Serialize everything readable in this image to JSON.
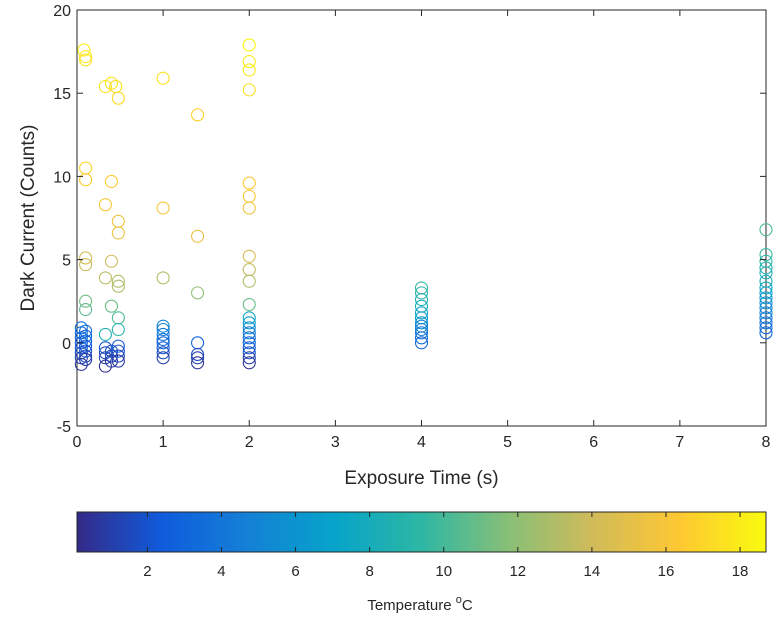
{
  "chart_data": {
    "type": "scatter",
    "xlabel": "Exposure Time (s)",
    "ylabel": "Dark Current (Counts)",
    "xlim": [
      0,
      8
    ],
    "ylim": [
      -5,
      20
    ],
    "xticks": [
      0,
      1,
      2,
      3,
      4,
      5,
      6,
      7,
      8
    ],
    "yticks": [
      -5,
      0,
      5,
      10,
      15,
      20
    ],
    "grid": false,
    "marker": "open-circle",
    "colormap": "parula",
    "colorbar": {
      "label_text": "Temperature ",
      "label_sup": "o",
      "label_unit": "C",
      "range": [
        0.1,
        18.7
      ],
      "ticks": [
        2,
        4,
        6,
        8,
        10,
        12,
        14,
        16,
        18
      ],
      "stops": [
        "#352a87",
        "#0f5cdd",
        "#1481d6",
        "#06a4ca",
        "#2eb7a4",
        "#87bf77",
        "#d1bb59",
        "#fec832",
        "#f9fb0e"
      ]
    },
    "points": [
      {
        "x": 0.08,
        "y": 17.6,
        "t": 18.0
      },
      {
        "x": 0.1,
        "y": 17.2,
        "t": 17.8
      },
      {
        "x": 0.1,
        "y": 17.0,
        "t": 17.6
      },
      {
        "x": 0.1,
        "y": 10.5,
        "t": 16.9
      },
      {
        "x": 0.1,
        "y": 9.8,
        "t": 16.5
      },
      {
        "x": 0.1,
        "y": 5.1,
        "t": 14.2
      },
      {
        "x": 0.1,
        "y": 4.7,
        "t": 13.8
      },
      {
        "x": 0.1,
        "y": 2.5,
        "t": 11.2
      },
      {
        "x": 0.1,
        "y": 2.0,
        "t": 10.6
      },
      {
        "x": 0.05,
        "y": 0.9,
        "t": 3.6
      },
      {
        "x": 0.05,
        "y": 0.6,
        "t": 3.3
      },
      {
        "x": 0.05,
        "y": 0.3,
        "t": 3.0
      },
      {
        "x": 0.05,
        "y": 0.0,
        "t": 2.6
      },
      {
        "x": 0.05,
        "y": -0.3,
        "t": 2.2
      },
      {
        "x": 0.05,
        "y": -0.6,
        "t": 1.8
      },
      {
        "x": 0.05,
        "y": -0.9,
        "t": 1.2
      },
      {
        "x": 0.05,
        "y": -1.3,
        "t": 0.6
      },
      {
        "x": 0.1,
        "y": 0.7,
        "t": 3.5
      },
      {
        "x": 0.1,
        "y": 0.4,
        "t": 3.1
      },
      {
        "x": 0.1,
        "y": 0.1,
        "t": 2.7
      },
      {
        "x": 0.1,
        "y": -0.2,
        "t": 2.3
      },
      {
        "x": 0.1,
        "y": -0.5,
        "t": 1.9
      },
      {
        "x": 0.1,
        "y": -0.8,
        "t": 1.4
      },
      {
        "x": 0.1,
        "y": -1.0,
        "t": 0.9
      },
      {
        "x": 0.33,
        "y": 15.4,
        "t": 17.5
      },
      {
        "x": 0.4,
        "y": 15.6,
        "t": 17.7
      },
      {
        "x": 0.45,
        "y": 15.4,
        "t": 17.4
      },
      {
        "x": 0.48,
        "y": 14.7,
        "t": 17.2
      },
      {
        "x": 0.4,
        "y": 9.7,
        "t": 16.4
      },
      {
        "x": 0.33,
        "y": 8.3,
        "t": 16.0
      },
      {
        "x": 0.48,
        "y": 7.3,
        "t": 15.6
      },
      {
        "x": 0.48,
        "y": 6.6,
        "t": 15.3
      },
      {
        "x": 0.4,
        "y": 4.9,
        "t": 14.0
      },
      {
        "x": 0.33,
        "y": 3.9,
        "t": 13.4
      },
      {
        "x": 0.48,
        "y": 3.7,
        "t": 13.0
      },
      {
        "x": 0.48,
        "y": 3.4,
        "t": 12.8
      },
      {
        "x": 0.4,
        "y": 2.2,
        "t": 11.0
      },
      {
        "x": 0.48,
        "y": 1.5,
        "t": 10.2
      },
      {
        "x": 0.48,
        "y": 0.8,
        "t": 9.2
      },
      {
        "x": 0.33,
        "y": 0.5,
        "t": 8.6
      },
      {
        "x": 0.33,
        "y": -0.3,
        "t": 2.0
      },
      {
        "x": 0.33,
        "y": -0.6,
        "t": 1.6
      },
      {
        "x": 0.33,
        "y": -0.9,
        "t": 1.1
      },
      {
        "x": 0.33,
        "y": -1.4,
        "t": 0.4
      },
      {
        "x": 0.4,
        "y": -0.5,
        "t": 1.9
      },
      {
        "x": 0.4,
        "y": -0.8,
        "t": 1.4
      },
      {
        "x": 0.4,
        "y": -1.1,
        "t": 0.8
      },
      {
        "x": 0.48,
        "y": -0.2,
        "t": 2.3
      },
      {
        "x": 0.48,
        "y": -0.5,
        "t": 1.8
      },
      {
        "x": 0.48,
        "y": -0.8,
        "t": 1.3
      },
      {
        "x": 0.48,
        "y": -1.1,
        "t": 0.7
      },
      {
        "x": 1.0,
        "y": 15.9,
        "t": 17.5
      },
      {
        "x": 1.0,
        "y": 8.1,
        "t": 15.9
      },
      {
        "x": 1.0,
        "y": 3.9,
        "t": 13.2
      },
      {
        "x": 1.0,
        "y": 1.0,
        "t": 5.2
      },
      {
        "x": 1.0,
        "y": 0.8,
        "t": 4.6
      },
      {
        "x": 1.0,
        "y": 0.5,
        "t": 4.0
      },
      {
        "x": 1.0,
        "y": 0.2,
        "t": 3.4
      },
      {
        "x": 1.0,
        "y": 0.0,
        "t": 2.9
      },
      {
        "x": 1.0,
        "y": -0.3,
        "t": 2.3
      },
      {
        "x": 1.0,
        "y": -0.6,
        "t": 1.7
      },
      {
        "x": 1.0,
        "y": -0.9,
        "t": 1.1
      },
      {
        "x": 1.4,
        "y": 13.7,
        "t": 16.8
      },
      {
        "x": 1.4,
        "y": 6.4,
        "t": 15.2
      },
      {
        "x": 1.4,
        "y": 3.0,
        "t": 12.0
      },
      {
        "x": 1.4,
        "y": 0.0,
        "t": 2.8
      },
      {
        "x": 1.4,
        "y": -0.7,
        "t": 1.6
      },
      {
        "x": 1.4,
        "y": -0.9,
        "t": 1.2
      },
      {
        "x": 1.4,
        "y": -1.2,
        "t": 0.6
      },
      {
        "x": 2.0,
        "y": 17.9,
        "t": 18.4
      },
      {
        "x": 2.0,
        "y": 16.9,
        "t": 18.0
      },
      {
        "x": 2.0,
        "y": 16.4,
        "t": 17.8
      },
      {
        "x": 2.0,
        "y": 15.2,
        "t": 17.4
      },
      {
        "x": 2.0,
        "y": 9.6,
        "t": 16.3
      },
      {
        "x": 2.0,
        "y": 8.8,
        "t": 16.0
      },
      {
        "x": 2.0,
        "y": 8.1,
        "t": 15.8
      },
      {
        "x": 2.0,
        "y": 5.2,
        "t": 14.3
      },
      {
        "x": 2.0,
        "y": 4.4,
        "t": 13.6
      },
      {
        "x": 2.0,
        "y": 3.7,
        "t": 13.0
      },
      {
        "x": 2.0,
        "y": 2.3,
        "t": 10.9
      },
      {
        "x": 2.0,
        "y": 1.5,
        "t": 7.4
      },
      {
        "x": 2.0,
        "y": 1.2,
        "t": 6.6
      },
      {
        "x": 2.0,
        "y": 0.9,
        "t": 5.2
      },
      {
        "x": 2.0,
        "y": 0.6,
        "t": 4.4
      },
      {
        "x": 2.0,
        "y": 0.3,
        "t": 3.7
      },
      {
        "x": 2.0,
        "y": 0.0,
        "t": 3.0
      },
      {
        "x": 2.0,
        "y": -0.3,
        "t": 2.4
      },
      {
        "x": 2.0,
        "y": -0.6,
        "t": 1.8
      },
      {
        "x": 2.0,
        "y": -0.9,
        "t": 1.1
      },
      {
        "x": 2.0,
        "y": -1.2,
        "t": 0.5
      },
      {
        "x": 4.0,
        "y": 3.3,
        "t": 9.6
      },
      {
        "x": 4.0,
        "y": 3.0,
        "t": 9.2
      },
      {
        "x": 4.0,
        "y": 2.6,
        "t": 8.6
      },
      {
        "x": 4.0,
        "y": 2.2,
        "t": 8.0
      },
      {
        "x": 4.0,
        "y": 1.8,
        "t": 7.3
      },
      {
        "x": 4.0,
        "y": 1.5,
        "t": 6.6
      },
      {
        "x": 4.0,
        "y": 1.2,
        "t": 5.8
      },
      {
        "x": 4.0,
        "y": 1.0,
        "t": 5.2
      },
      {
        "x": 4.0,
        "y": 0.8,
        "t": 4.6
      },
      {
        "x": 4.0,
        "y": 0.6,
        "t": 4.1
      },
      {
        "x": 4.0,
        "y": 0.3,
        "t": 3.6
      },
      {
        "x": 4.0,
        "y": 0.0,
        "t": 3.1
      },
      {
        "x": 8.0,
        "y": 6.8,
        "t": 10.1
      },
      {
        "x": 8.0,
        "y": 5.3,
        "t": 9.6
      },
      {
        "x": 8.0,
        "y": 4.9,
        "t": 9.2
      },
      {
        "x": 8.0,
        "y": 4.5,
        "t": 8.8
      },
      {
        "x": 8.0,
        "y": 4.2,
        "t": 8.4
      },
      {
        "x": 8.0,
        "y": 3.7,
        "t": 7.9
      },
      {
        "x": 8.0,
        "y": 3.3,
        "t": 7.3
      },
      {
        "x": 8.0,
        "y": 3.0,
        "t": 6.8
      },
      {
        "x": 8.0,
        "y": 2.7,
        "t": 6.2
      },
      {
        "x": 8.0,
        "y": 2.4,
        "t": 5.7
      },
      {
        "x": 8.0,
        "y": 2.1,
        "t": 5.2
      },
      {
        "x": 8.0,
        "y": 1.8,
        "t": 4.7
      },
      {
        "x": 8.0,
        "y": 1.5,
        "t": 4.2
      },
      {
        "x": 8.0,
        "y": 1.2,
        "t": 3.7
      },
      {
        "x": 8.0,
        "y": 0.9,
        "t": 3.3
      },
      {
        "x": 8.0,
        "y": 0.6,
        "t": 2.9
      }
    ]
  }
}
